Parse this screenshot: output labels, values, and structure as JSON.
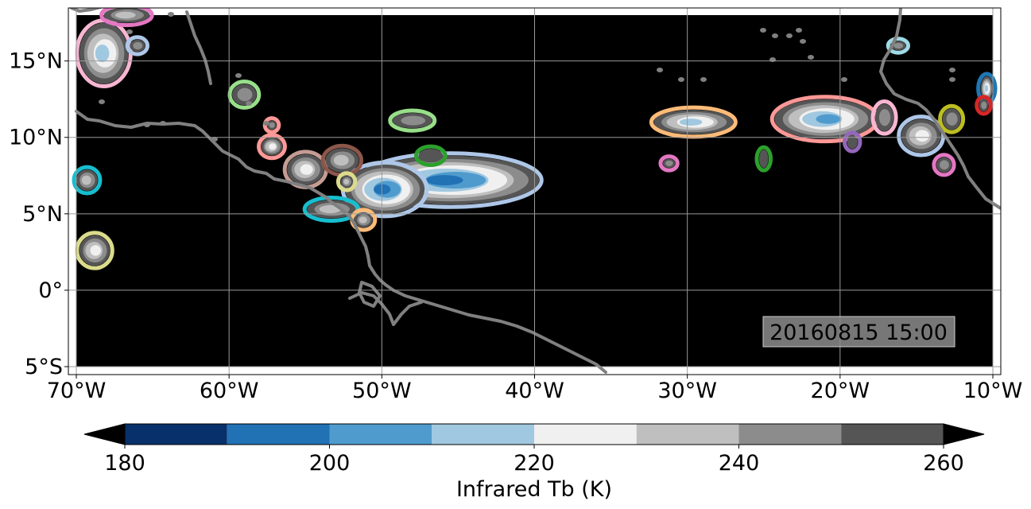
{
  "map": {
    "extent": {
      "lon": [
        -70,
        -10
      ],
      "lat": [
        -5,
        18
      ]
    },
    "background_color": "#000000",
    "coastline_color": "#808080",
    "grid": true,
    "lon_ticks": [
      {
        "value": -70,
        "label": "70°W"
      },
      {
        "value": -60,
        "label": "60°W"
      },
      {
        "value": -50,
        "label": "50°W"
      },
      {
        "value": -40,
        "label": "40°W"
      },
      {
        "value": -30,
        "label": "30°W"
      },
      {
        "value": -20,
        "label": "20°W"
      },
      {
        "value": -10,
        "label": "10°W"
      }
    ],
    "lat_ticks": [
      {
        "value": 15,
        "label": "15°N"
      },
      {
        "value": 10,
        "label": "10°N"
      },
      {
        "value": 5,
        "label": "5°N"
      },
      {
        "value": 0,
        "label": "0°"
      },
      {
        "value": -5,
        "label": "5°S"
      }
    ],
    "timestamp": "20160815 15:00"
  },
  "colorbar": {
    "label": "Infrared Tb (K)",
    "min": 180,
    "max": 260,
    "extend": "both",
    "bins": [
      {
        "from": 180,
        "to": 190,
        "color": "#08306b"
      },
      {
        "from": 190,
        "to": 200,
        "color": "#2171b5"
      },
      {
        "from": 200,
        "to": 210,
        "color": "#4f9bce"
      },
      {
        "from": 210,
        "to": 220,
        "color": "#a0c8e0"
      },
      {
        "from": 220,
        "to": 230,
        "color": "#f0f0f0"
      },
      {
        "from": 230,
        "to": 240,
        "color": "#bfbfbf"
      },
      {
        "from": 240,
        "to": 250,
        "color": "#8c8c8c"
      },
      {
        "from": 250,
        "to": 260,
        "color": "#555555"
      }
    ],
    "under_color": "#000000",
    "over_color": "#000000",
    "ticks": [
      {
        "value": 180,
        "label": "180"
      },
      {
        "value": 200,
        "label": "200"
      },
      {
        "value": 220,
        "label": "220"
      },
      {
        "value": 240,
        "label": "240"
      },
      {
        "value": 260,
        "label": "260"
      }
    ]
  },
  "cloud_systems": [
    {
      "lon": -45.5,
      "lat": 7.2,
      "rlon": 5.8,
      "rlat": 1.6,
      "outline": "#aec7e8",
      "min_tb": 195
    },
    {
      "lon": -49.8,
      "lat": 6.6,
      "rlon": 2.6,
      "rlat": 1.6,
      "outline": "#aec7e8",
      "min_tb": 190
    },
    {
      "lon": -21.0,
      "lat": 11.2,
      "rlon": 3.3,
      "rlat": 1.3,
      "outline": "#ff9896",
      "min_tb": 205
    },
    {
      "lon": -29.6,
      "lat": 11.0,
      "rlon": 2.6,
      "rlat": 0.8,
      "outline": "#ffbb78",
      "min_tb": 215
    },
    {
      "lon": -48.0,
      "lat": 11.1,
      "rlon": 1.3,
      "rlat": 0.5,
      "outline": "#98df8a",
      "min_tb": 245
    },
    {
      "lon": -46.8,
      "lat": 8.8,
      "rlon": 0.8,
      "rlat": 0.45,
      "outline": "#2ca02c",
      "min_tb": 250
    },
    {
      "lon": -55.0,
      "lat": 7.9,
      "rlon": 1.2,
      "rlat": 1.0,
      "outline": "#c49c94",
      "min_tb": 225
    },
    {
      "lon": -57.2,
      "lat": 9.4,
      "rlon": 0.7,
      "rlat": 0.6,
      "outline": "#ff9896",
      "min_tb": 225
    },
    {
      "lon": -52.6,
      "lat": 8.5,
      "rlon": 1.1,
      "rlat": 0.8,
      "outline": "#8c564b",
      "min_tb": 235
    },
    {
      "lon": -53.3,
      "lat": 5.3,
      "rlon": 1.6,
      "rlat": 0.6,
      "outline": "#17becf",
      "min_tb": 230
    },
    {
      "lon": -52.3,
      "lat": 7.1,
      "rlon": 0.4,
      "rlat": 0.4,
      "outline": "#dbdb8d",
      "min_tb": 235
    },
    {
      "lon": -51.2,
      "lat": 4.6,
      "rlon": 0.6,
      "rlat": 0.5,
      "outline": "#ffbb78",
      "min_tb": 235
    },
    {
      "lon": -59.0,
      "lat": 12.8,
      "rlon": 0.8,
      "rlat": 0.7,
      "outline": "#98df8a",
      "min_tb": 245
    },
    {
      "lon": -57.2,
      "lat": 10.8,
      "rlon": 0.3,
      "rlat": 0.3,
      "outline": "#ff9896",
      "min_tb": 245
    },
    {
      "lon": -68.2,
      "lat": 15.5,
      "rlon": 1.6,
      "rlat": 2.0,
      "outline": "#f7b6d2",
      "min_tb": 215
    },
    {
      "lon": -66.0,
      "lat": 16.0,
      "rlon": 0.5,
      "rlat": 0.4,
      "outline": "#aec7e8",
      "min_tb": 245
    },
    {
      "lon": -66.7,
      "lat": 18.0,
      "rlon": 1.5,
      "rlat": 0.5,
      "outline": "#e377c2",
      "min_tb": 235
    },
    {
      "lon": -69.3,
      "lat": 7.2,
      "rlon": 0.7,
      "rlat": 0.7,
      "outline": "#17becf",
      "min_tb": 230
    },
    {
      "lon": -68.8,
      "lat": 2.6,
      "rlon": 1.0,
      "rlat": 1.0,
      "outline": "#dbdb8d",
      "min_tb": 225
    },
    {
      "lon": -17.1,
      "lat": 11.3,
      "rlon": 0.6,
      "rlat": 0.9,
      "outline": "#f7b6d2",
      "min_tb": 240
    },
    {
      "lon": -19.2,
      "lat": 9.7,
      "rlon": 0.35,
      "rlat": 0.45,
      "outline": "#9467bd",
      "min_tb": 250
    },
    {
      "lon": -25.0,
      "lat": 8.6,
      "rlon": 0.3,
      "rlat": 0.6,
      "outline": "#2ca02c",
      "min_tb": 250
    },
    {
      "lon": -31.2,
      "lat": 8.3,
      "rlon": 0.4,
      "rlat": 0.3,
      "outline": "#e377c2",
      "min_tb": 240
    },
    {
      "lon": -14.7,
      "lat": 10.1,
      "rlon": 1.3,
      "rlat": 1.1,
      "outline": "#aec7e8",
      "min_tb": 225
    },
    {
      "lon": -12.7,
      "lat": 11.2,
      "rlon": 0.6,
      "rlat": 0.7,
      "outline": "#bcbd22",
      "min_tb": 240
    },
    {
      "lon": -13.2,
      "lat": 8.2,
      "rlon": 0.5,
      "rlat": 0.5,
      "outline": "#e377c2",
      "min_tb": 240
    },
    {
      "lon": -16.2,
      "lat": 16.0,
      "rlon": 0.5,
      "rlat": 0.3,
      "outline": "#9edae5",
      "min_tb": 245
    },
    {
      "lon": -10.4,
      "lat": 13.2,
      "rlon": 0.4,
      "rlat": 0.8,
      "outline": "#1f77b4",
      "min_tb": 215
    },
    {
      "lon": -10.6,
      "lat": 12.1,
      "rlon": 0.3,
      "rlat": 0.4,
      "outline": "#d62728",
      "min_tb": 245
    }
  ]
}
